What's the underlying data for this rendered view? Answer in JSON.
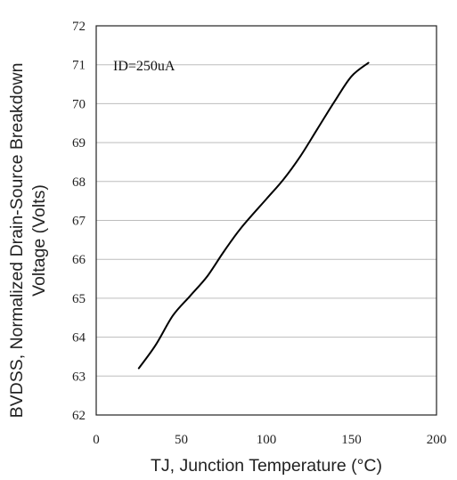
{
  "chart_data": {
    "type": "line",
    "title": "",
    "xlabel": "TJ, Junction Temperature (°C)",
    "ylabel_line1": "BVDSS, Normalized Drain-Source Breakdown",
    "ylabel_line2": "Voltage (Volts)",
    "annotation": "ID=250uA",
    "xlim": [
      0,
      200
    ],
    "ylim": [
      62,
      72
    ],
    "xticks": [
      0,
      50,
      100,
      150,
      200
    ],
    "yticks": [
      62,
      63,
      64,
      65,
      66,
      67,
      68,
      69,
      70,
      71,
      72
    ],
    "grid": true,
    "legend": "none",
    "line_color": "#000000",
    "series": [
      {
        "x": [
          25,
          35,
          45,
          55,
          65,
          75,
          85,
          100,
          110,
          120,
          130,
          140,
          150,
          160
        ],
        "y": [
          63.2,
          63.8,
          64.55,
          65.05,
          65.55,
          66.2,
          66.8,
          67.55,
          68.05,
          68.65,
          69.35,
          70.05,
          70.7,
          71.05
        ]
      }
    ]
  }
}
